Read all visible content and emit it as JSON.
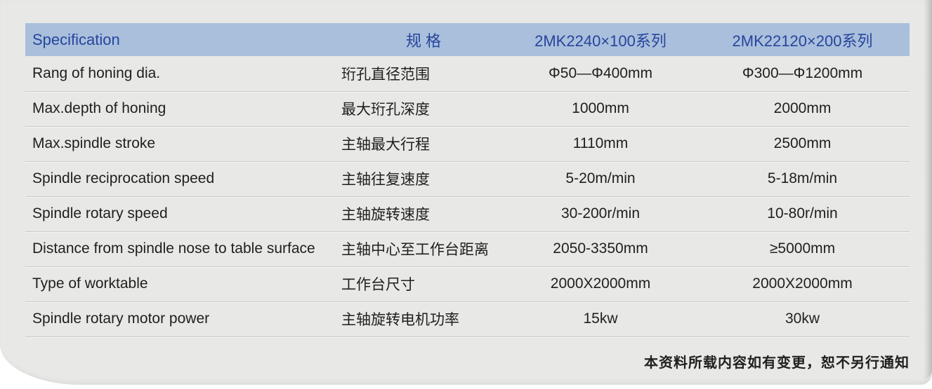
{
  "page": {
    "background_color": "#e8e8e6",
    "header_bg_color": "#a9bfdc",
    "header_text_color": "#27459c",
    "body_text_color": "#1f1f1d",
    "footer_note": "本资料所载内容如有变更，恕不另行通知"
  },
  "table": {
    "columns": [
      "Specification",
      "规 格",
      "2MK2240×100系列",
      "2MK22120×200系列"
    ],
    "rows": [
      {
        "en": "Rang of honing dia.",
        "zh": "珩孔直径范围",
        "v1": "Φ50—Φ400mm",
        "v2": "Φ300—Φ1200mm"
      },
      {
        "en": "Max.depth of honing",
        "zh": "最大珩孔深度",
        "v1": "1000mm",
        "v2": "2000mm"
      },
      {
        "en": "Max.spindle stroke",
        "zh": "主轴最大行程",
        "v1": "1110mm",
        "v2": "2500mm"
      },
      {
        "en": "Spindle reciprocation speed",
        "zh": "主轴往复速度",
        "v1": "5-20m/min",
        "v2": "5-18m/min"
      },
      {
        "en": "Spindle rotary speed",
        "zh": "主轴旋转速度",
        "v1": "30-200r/min",
        "v2": "10-80r/min"
      },
      {
        "en": "Distance from spindle nose to table surface",
        "zh": "主轴中心至工作台距离",
        "v1": "2050-3350mm",
        "v2": "≥5000mm"
      },
      {
        "en": "Type of worktable",
        "zh": "工作台尺寸",
        "v1": "2000X2000mm",
        "v2": "2000X2000mm"
      },
      {
        "en": "Spindle rotary motor power",
        "zh": "主轴旋转电机功率",
        "v1": "15kw",
        "v2": "30kw"
      }
    ]
  }
}
